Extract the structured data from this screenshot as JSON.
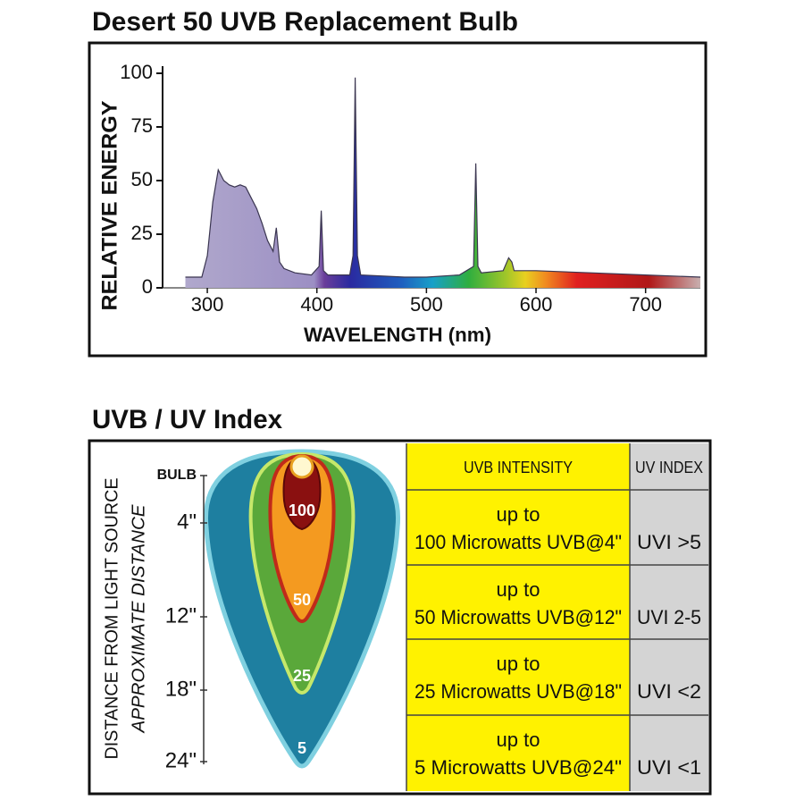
{
  "chart_data": {
    "type": "area",
    "title": "Desert 50 UVB Replacement Bulb",
    "x_label": "WAVELENGTH (nm)",
    "y_label": "RELATIVE ENERGY",
    "x": [
      280,
      295,
      300,
      305,
      310,
      315,
      320,
      325,
      330,
      335,
      340,
      345,
      350,
      355,
      360,
      363,
      366,
      370,
      380,
      395,
      402,
      404,
      406,
      410,
      430,
      433,
      435,
      437,
      440,
      480,
      500,
      530,
      543,
      545,
      547,
      550,
      570,
      575,
      578,
      580,
      600,
      650,
      700,
      750
    ],
    "values": [
      5,
      5,
      15,
      40,
      55,
      50,
      48,
      47,
      48,
      47,
      42,
      37,
      30,
      22,
      17,
      28,
      12,
      9,
      7,
      6,
      10,
      36,
      8,
      6,
      6,
      15,
      98,
      15,
      6,
      5,
      5,
      6,
      10,
      58,
      10,
      7,
      8,
      14,
      12,
      8,
      8,
      7,
      6,
      5
    ],
    "xlim": [
      260,
      750
    ],
    "ylim": [
      0,
      100
    ],
    "xticks": [
      300,
      400,
      500,
      600,
      700
    ],
    "yticks": [
      0,
      25,
      50,
      75,
      100
    ]
  },
  "uv_index": {
    "title": "UVB / UV Index",
    "axis_label": "DISTANCE FROM LIGHT SOURCE",
    "axis_sublabel": "APPROXIMATE DISTANCE",
    "distances": [
      "BULB",
      "4\"",
      "12\"",
      "18\"",
      "24\""
    ],
    "zones": [
      "100",
      "50",
      "25",
      "5"
    ],
    "table": {
      "header": [
        "UVB INTENSITY",
        "UV INDEX"
      ],
      "rows": [
        [
          "up to",
          "100 Microwatts UVB@4\"",
          "UVI >5"
        ],
        [
          "up to",
          "50 Microwatts UVB@12\"",
          "UVI 2-5"
        ],
        [
          "up to",
          "25 Microwatts UVB@18\"",
          "UVI <2"
        ],
        [
          "up to",
          "5 Microwatts UVB@24\"",
          "UVI <1"
        ]
      ]
    }
  }
}
